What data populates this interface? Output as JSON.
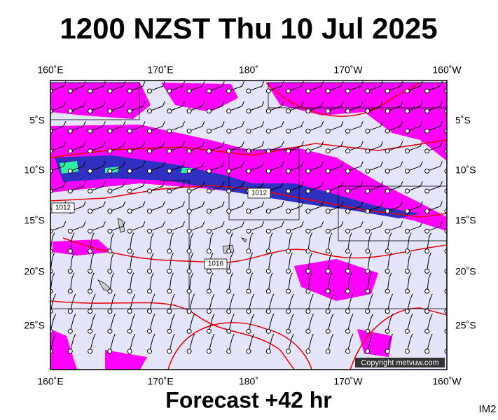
{
  "title": "1200 NZST Thu 10 Jul 2025",
  "top_axis": [
    "160˚E",
    "170˚E",
    "180˚",
    "170˚W",
    "160˚W"
  ],
  "bottom_axis": [
    "160˚E",
    "170˚E",
    "180˚",
    "170˚W",
    "160˚W"
  ],
  "left_axis": [
    "5˚S",
    "10˚S",
    "15˚S",
    "20˚S",
    "25˚S"
  ],
  "right_axis": [
    "5˚S",
    "10˚S",
    "15˚S",
    "20˚S",
    "25˚S"
  ],
  "isobar_labels": [
    "1012",
    "1012",
    "1016"
  ],
  "copyright": "Copyright metvuw.com",
  "footer": "Forecast +42 hr",
  "code": "IM2"
}
